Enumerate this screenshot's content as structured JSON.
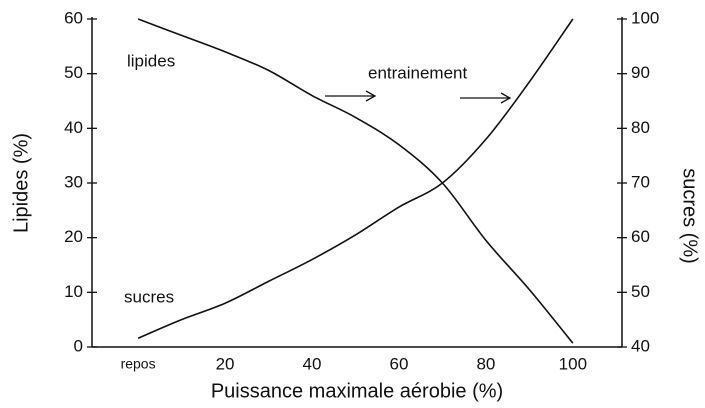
{
  "chart_data": {
    "type": "line",
    "x_label": "Puissance maximale aérobie (%)",
    "y_label": "Lipides (%)",
    "y2_label": "sucres (%)",
    "x": [
      0,
      10,
      20,
      30,
      40,
      50,
      60,
      70,
      80,
      90,
      100
    ],
    "xlim": [
      -10.6,
      111.3
    ],
    "xticks": [
      {
        "value": 0,
        "label": "repos"
      },
      20,
      40,
      60,
      80,
      100
    ],
    "ylim": [
      0,
      60
    ],
    "yticks": [
      0,
      10,
      20,
      30,
      40,
      50,
      60
    ],
    "y2lim": [
      40,
      100
    ],
    "y2ticks": [
      40,
      50,
      60,
      70,
      80,
      90,
      100
    ],
    "series": [
      {
        "name": "lipides",
        "color": "#111111",
        "values": [
          60,
          57,
          54,
          50.6,
          46,
          42,
          37,
          30,
          19.5,
          10.5,
          0.7
        ]
      },
      {
        "name": "sucres",
        "color": "#111111",
        "axis": "y2",
        "values": [
          41.6,
          45,
          48,
          52,
          56,
          60.5,
          65.6,
          70,
          78,
          88.5,
          100
        ]
      }
    ],
    "annotations": [
      "lipides",
      "sucres",
      "entrainement"
    ]
  }
}
